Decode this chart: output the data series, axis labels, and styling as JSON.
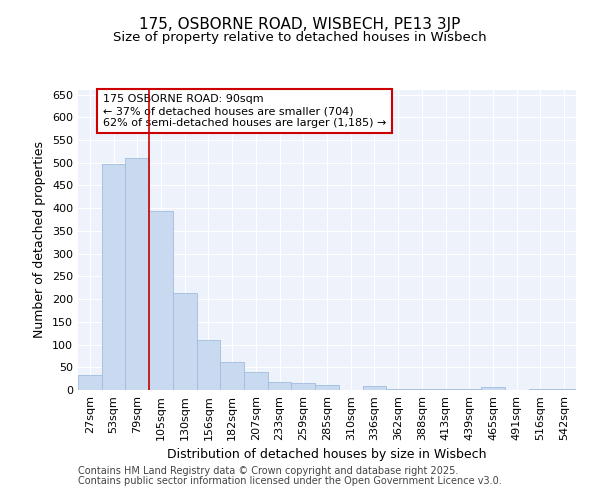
{
  "title1": "175, OSBORNE ROAD, WISBECH, PE13 3JP",
  "title2": "Size of property relative to detached houses in Wisbech",
  "xlabel": "Distribution of detached houses by size in Wisbech",
  "ylabel": "Number of detached properties",
  "footer1": "Contains HM Land Registry data © Crown copyright and database right 2025.",
  "footer2": "Contains public sector information licensed under the Open Government Licence v3.0.",
  "annotation_line1": "175 OSBORNE ROAD: 90sqm",
  "annotation_line2": "← 37% of detached houses are smaller (704)",
  "annotation_line3": "62% of semi-detached houses are larger (1,185) →",
  "bar_color": "#c9d9f0",
  "bar_edgecolor": "#a0bedd",
  "vline_color": "#cc0000",
  "vline_x": 2.5,
  "categories": [
    "27sqm",
    "53sqm",
    "79sqm",
    "105sqm",
    "130sqm",
    "156sqm",
    "182sqm",
    "207sqm",
    "233sqm",
    "259sqm",
    "285sqm",
    "310sqm",
    "336sqm",
    "362sqm",
    "388sqm",
    "413sqm",
    "439sqm",
    "465sqm",
    "491sqm",
    "516sqm",
    "542sqm"
  ],
  "values": [
    32,
    497,
    510,
    393,
    213,
    110,
    62,
    40,
    18,
    15,
    11,
    1,
    9,
    2,
    2,
    2,
    2,
    7,
    1,
    2,
    2
  ],
  "ylim": [
    0,
    660
  ],
  "yticks": [
    0,
    50,
    100,
    150,
    200,
    250,
    300,
    350,
    400,
    450,
    500,
    550,
    600,
    650
  ],
  "bg_color": "#eef2fa",
  "grid_color": "#ffffff",
  "annotation_box_facecolor": "#ffffff",
  "annotation_box_edgecolor": "#cc0000",
  "annotation_fontsize": 8,
  "title1_fontsize": 11,
  "title2_fontsize": 9.5,
  "axis_label_fontsize": 9,
  "tick_fontsize": 8,
  "footer_fontsize": 7
}
